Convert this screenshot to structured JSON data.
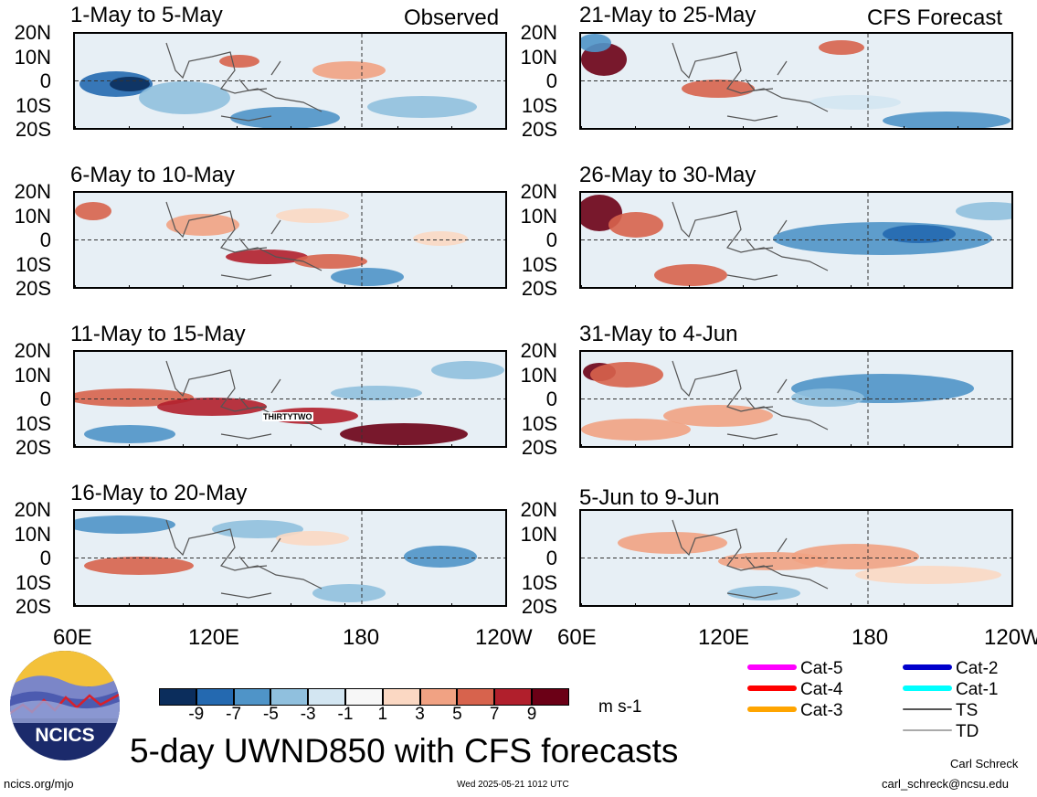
{
  "panels_left_tag": "Observed",
  "panels_right_tag": "CFS Forecast",
  "panels_left": [
    {
      "title": "1-May to 5-May"
    },
    {
      "title": "6-May to 10-May",
      "annotation": ""
    },
    {
      "title": "11-May to 15-May",
      "annotation": "THIRTYTWO"
    },
    {
      "title": "16-May to 20-May"
    }
  ],
  "panels_right": [
    {
      "title": "21-May to 25-May"
    },
    {
      "title": "26-May to 30-May"
    },
    {
      "title": "31-May to 4-Jun"
    },
    {
      "title": "5-Jun to 9-Jun"
    }
  ],
  "lat_labels": [
    "20N",
    "10N",
    "0",
    "10S",
    "20S"
  ],
  "lon_labels": [
    "60E",
    "120E",
    "180",
    "120W"
  ],
  "colorbar": {
    "colors": [
      "#0b2d5c",
      "#2469b0",
      "#4f94c8",
      "#90c0de",
      "#d3e6f2",
      "#f7f7f7",
      "#fbd8c3",
      "#f1a283",
      "#d7634d",
      "#b11f2c",
      "#6b0016"
    ],
    "ticks": [
      "-9",
      "-7",
      "-5",
      "-3",
      "-1",
      "1",
      "3",
      "5",
      "7",
      "9"
    ],
    "units": "m s-1"
  },
  "legend": [
    {
      "label": "Cat-5",
      "color": "#ff00ff"
    },
    {
      "label": "Cat-4",
      "color": "#ff0000"
    },
    {
      "label": "Cat-3",
      "color": "#ffa500"
    },
    {
      "label": "Cat-2",
      "color": "#0000cc"
    },
    {
      "label": "Cat-1",
      "color": "#00ffff"
    },
    {
      "label": "TS",
      "color": "#555555"
    },
    {
      "label": "TD",
      "color": "#aaaaaa"
    }
  ],
  "logo_text": "NCICS",
  "main_title": "5-day UWND850 with CFS forecasts",
  "footer_left": "ncics.org/mjo",
  "footer_center": "Wed 2025-05-21 1012 UTC",
  "footer_right_name": "Carl Schreck",
  "footer_right_email": "carl_schreck@ncsu.edu",
  "chart_data": {
    "type": "heatmap",
    "variable": "UWND850",
    "units": "m s-1",
    "xlim": [
      "60E",
      "120W"
    ],
    "ylim": [
      "20S",
      "20N"
    ],
    "contour_levels": [
      -9,
      -7,
      -5,
      -3,
      -1,
      1,
      3,
      5,
      7,
      9
    ],
    "panels": [
      {
        "title": "1-May to 5-May",
        "source": "Observed"
      },
      {
        "title": "6-May to 10-May",
        "source": "Observed"
      },
      {
        "title": "11-May to 15-May",
        "source": "Observed"
      },
      {
        "title": "16-May to 20-May",
        "source": "Observed"
      },
      {
        "title": "21-May to 25-May",
        "source": "CFS Forecast"
      },
      {
        "title": "26-May to 30-May",
        "source": "CFS Forecast"
      },
      {
        "title": "31-May to 4-Jun",
        "source": "CFS Forecast"
      },
      {
        "title": "5-Jun to 9-Jun",
        "source": "CFS Forecast"
      }
    ]
  }
}
